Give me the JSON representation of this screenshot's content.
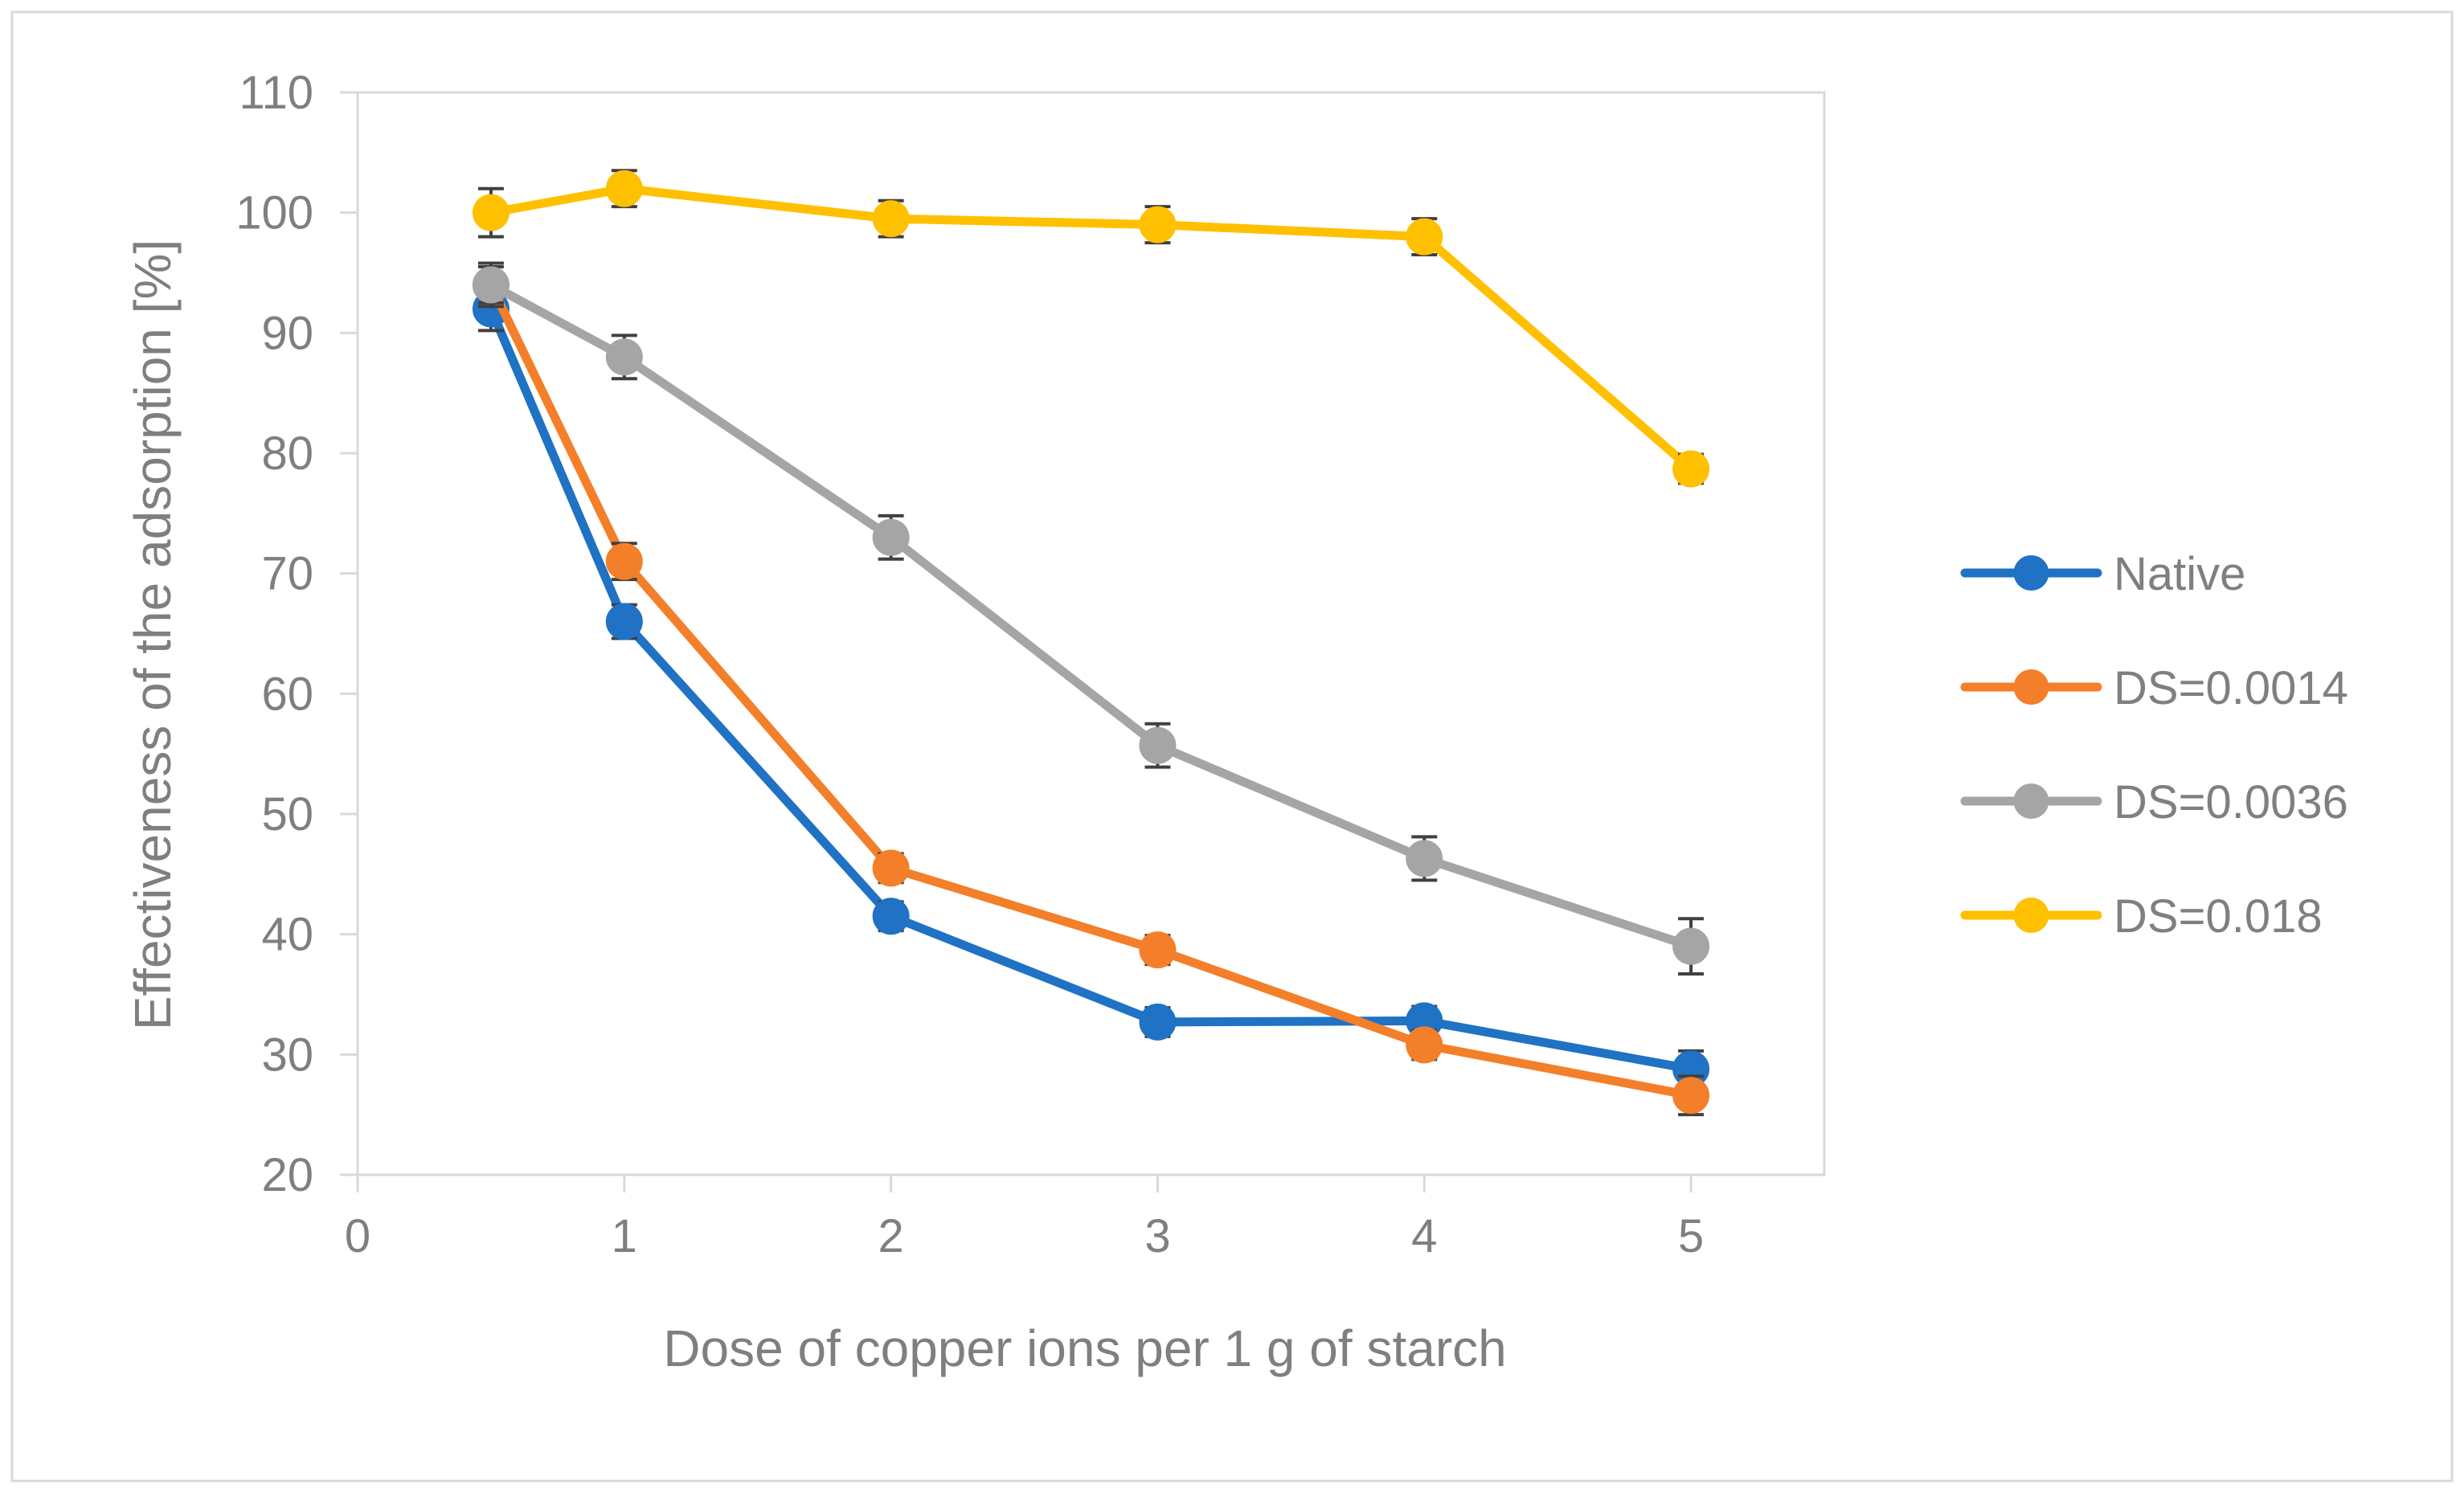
{
  "chart_data": {
    "type": "line",
    "title": "",
    "xlabel": "Dose of copper ions per 1 g of starch",
    "ylabel": "Effectiveness of the adsorption [%]",
    "xlim": [
      0,
      5.5
    ],
    "ylim": [
      20,
      110
    ],
    "xticks": [
      0,
      1,
      2,
      3,
      4,
      5
    ],
    "yticks": [
      20,
      30,
      40,
      50,
      60,
      70,
      80,
      90,
      100,
      110
    ],
    "x": [
      0.5,
      1,
      2,
      3,
      4,
      5
    ],
    "grid": false,
    "legend_position": "right",
    "series": [
      {
        "name": "Native",
        "color": "#1f72c4",
        "values": [
          92,
          66,
          41.5,
          32.7,
          32.8,
          28.8
        ],
        "errors": [
          1.8,
          1.4,
          1.2,
          1.2,
          1.2,
          1.5
        ]
      },
      {
        "name": "DS=0.0014",
        "color": "#f47f2a",
        "values": [
          94,
          71,
          45.5,
          38.7,
          30.8,
          26.6
        ],
        "errors": [
          1.5,
          1.5,
          1.2,
          1.2,
          1.2,
          1.6
        ]
      },
      {
        "name": "DS=0.0036",
        "color": "#a5a5a5",
        "values": [
          94,
          88,
          73,
          55.7,
          46.3,
          39
        ],
        "errors": [
          1.8,
          1.8,
          1.8,
          1.8,
          1.8,
          2.3
        ]
      },
      {
        "name": "DS=0.018",
        "color": "#ffc000",
        "values": [
          100,
          102,
          99.5,
          99,
          98,
          78.7
        ],
        "errors": [
          2,
          1.5,
          1.5,
          1.5,
          1.5,
          1.2
        ]
      }
    ]
  }
}
